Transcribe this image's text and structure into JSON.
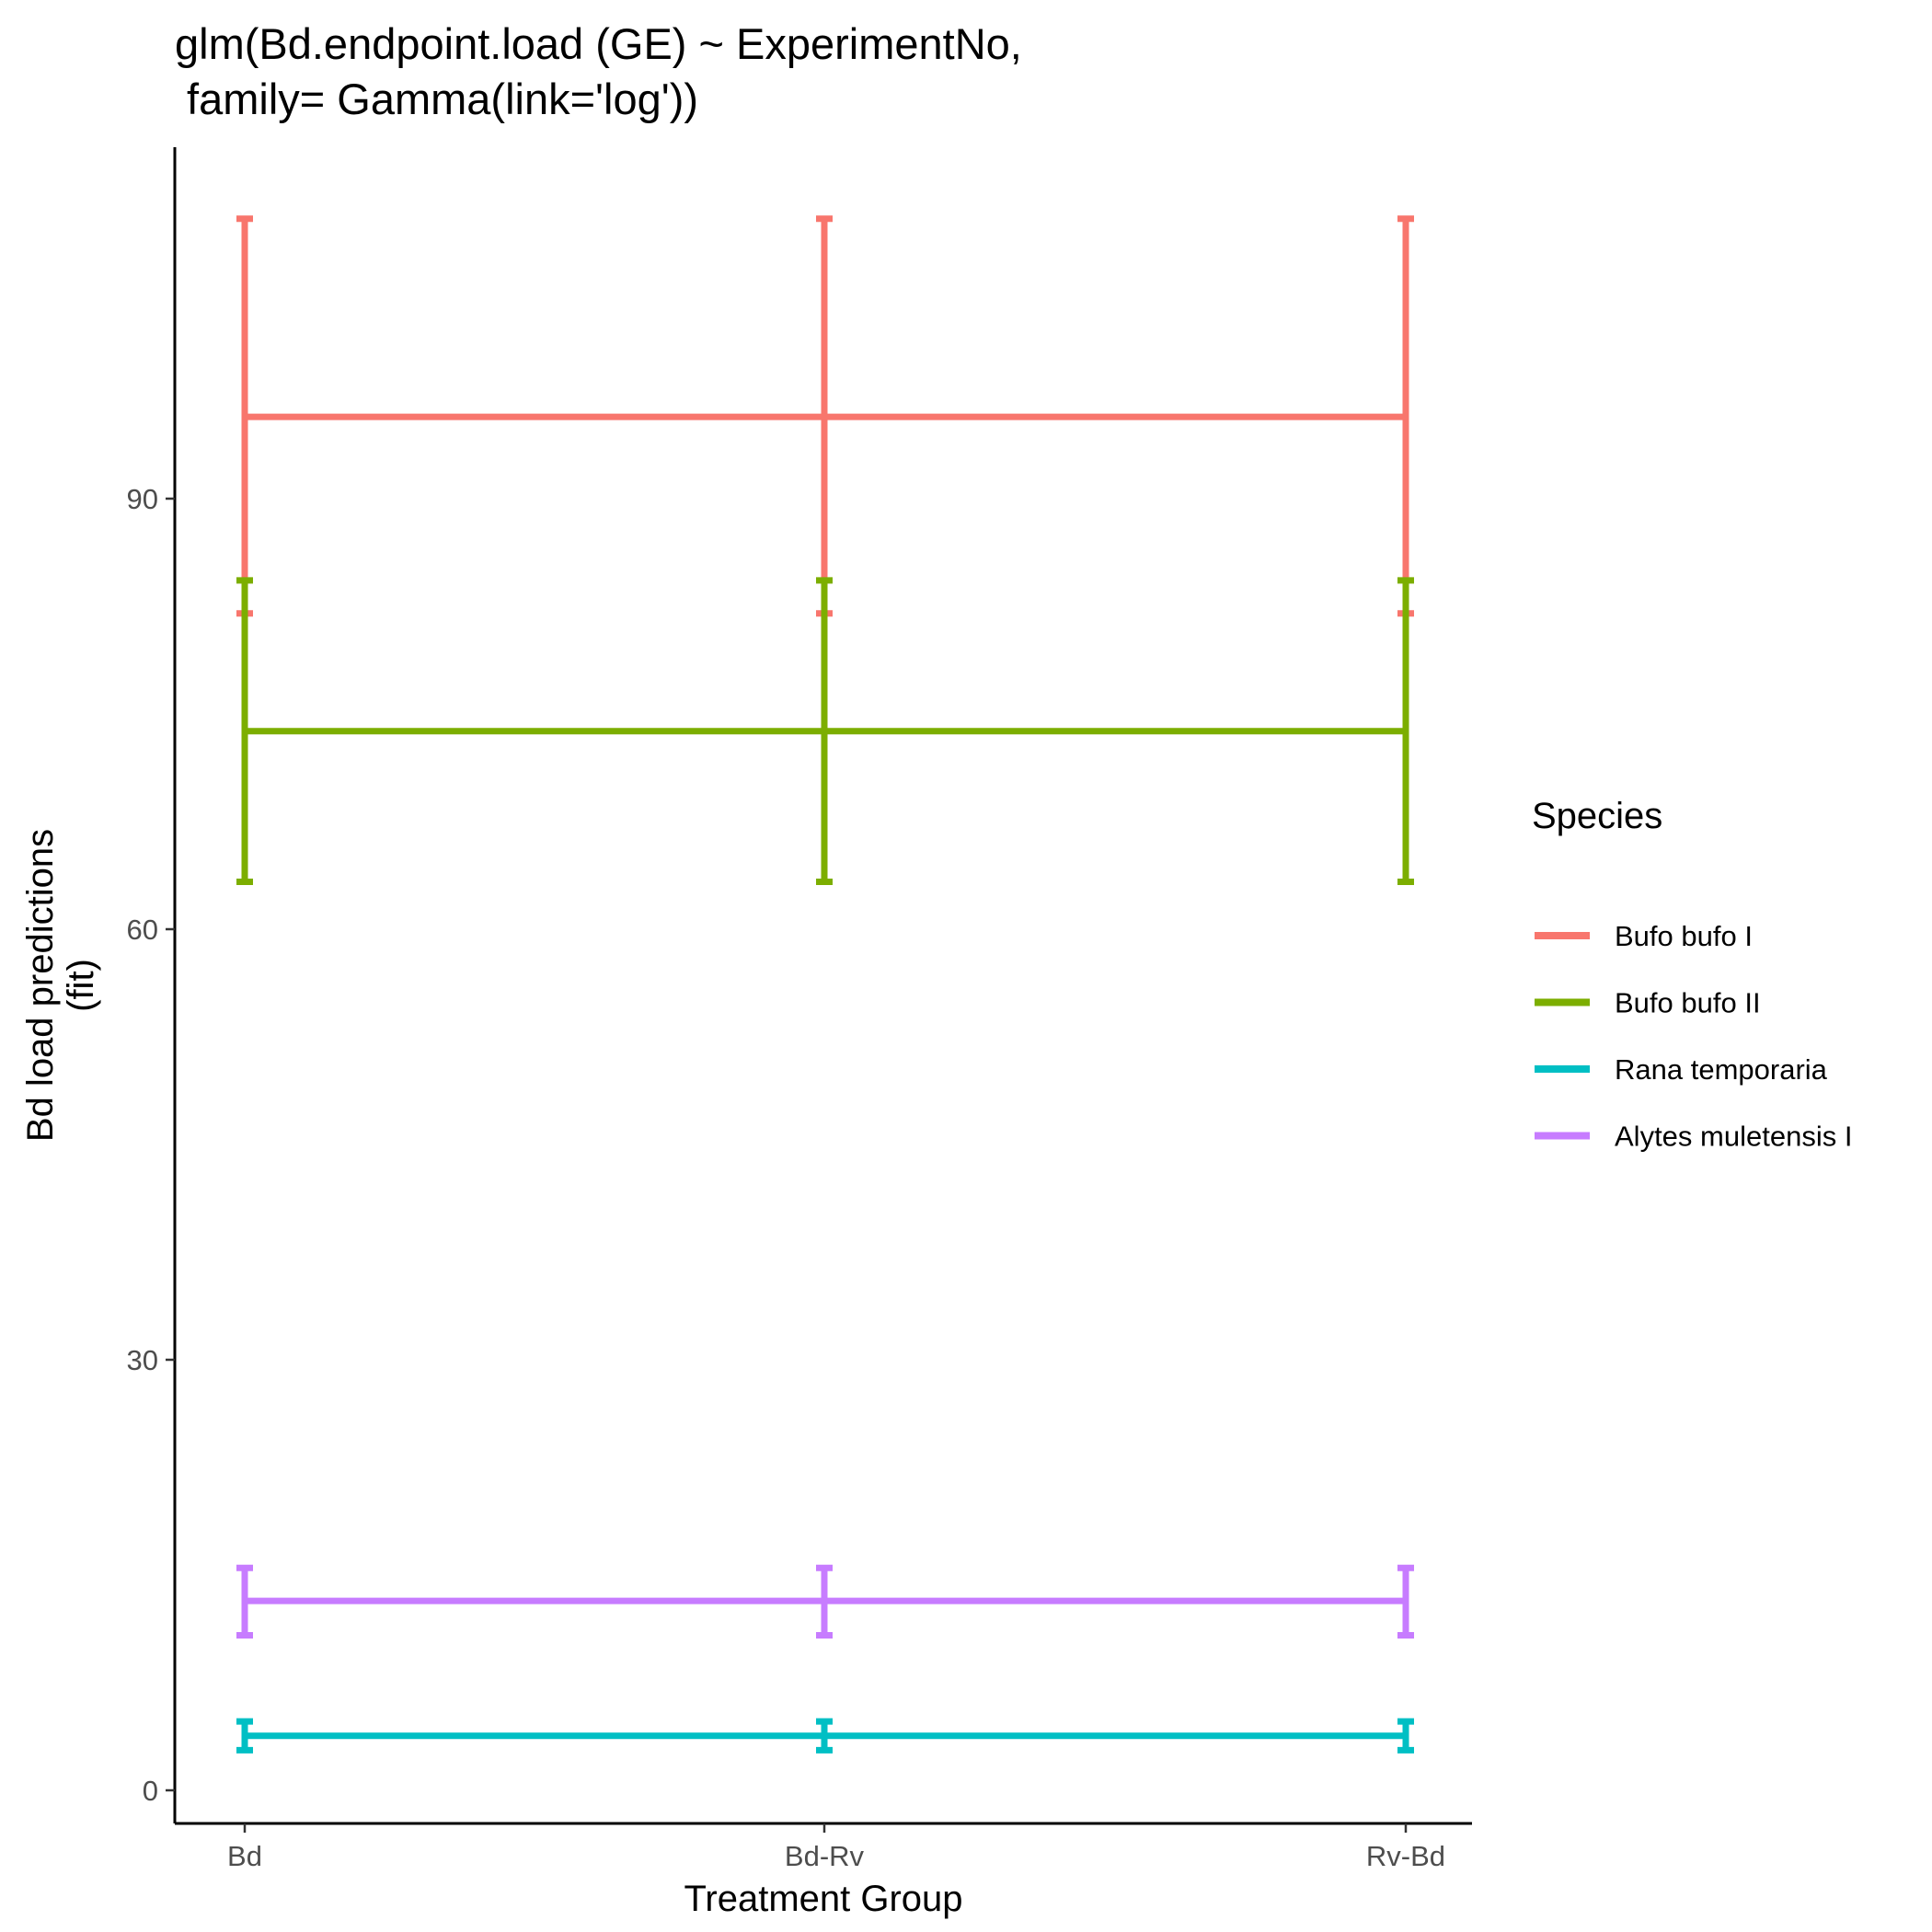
{
  "chart_data": {
    "type": "line",
    "title_lines": [
      "glm(Bd.endpoint.load (GE) ~ ExperimentNo,",
      " family= Gamma(link='log'))"
    ],
    "xlabel": "Treatment Group",
    "ylabel_lines": [
      "Bd load predictions",
      "(fit)"
    ],
    "categories": [
      "Bd",
      "Bd-Rv",
      "Rv-Bd"
    ],
    "yticks": [
      0,
      30,
      60,
      90
    ],
    "ylim": [
      -2.5,
      115
    ],
    "grid": false,
    "legend": {
      "title": "Species",
      "position": "right"
    },
    "series": [
      {
        "name": "Bufo bufo I",
        "color": "#F8766D",
        "fit": [
          95.7,
          95.7,
          95.7
        ],
        "lower": [
          82,
          82,
          82
        ],
        "upper": [
          109.5,
          109.5,
          109.5
        ]
      },
      {
        "name": "Bufo bufo II",
        "color": "#7CAE00",
        "fit": [
          73.8,
          73.8,
          73.8
        ],
        "lower": [
          63.3,
          63.3,
          63.3
        ],
        "upper": [
          84.3,
          84.3,
          84.3
        ]
      },
      {
        "name": "Rana temporaria",
        "color": "#00BFC4",
        "fit": [
          3.8,
          3.8,
          3.8
        ],
        "lower": [
          2.8,
          2.8,
          2.8
        ],
        "upper": [
          4.8,
          4.8,
          4.8
        ]
      },
      {
        "name": "Alytes muletensis I",
        "color": "#C77CFF",
        "fit": [
          13.2,
          13.2,
          13.2
        ],
        "lower": [
          10.8,
          10.8,
          10.8
        ],
        "upper": [
          15.5,
          15.5,
          15.5
        ]
      }
    ]
  }
}
